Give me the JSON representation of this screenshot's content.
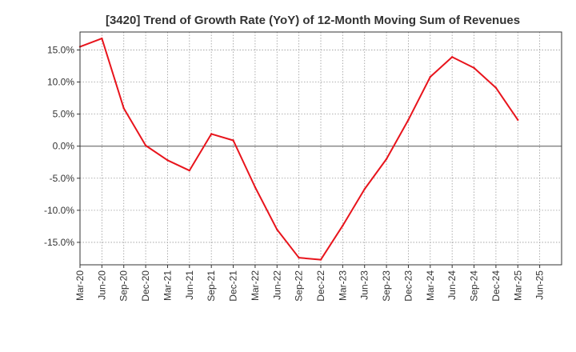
{
  "chart_data": {
    "type": "line",
    "title": "[3420]  Trend of Growth Rate (YoY) of 12-Month Moving Sum of Revenues",
    "xlabel": "",
    "ylabel": "",
    "x": [
      "Mar-20",
      "Jun-20",
      "Sep-20",
      "Dec-20",
      "Mar-21",
      "Jun-21",
      "Sep-21",
      "Dec-21",
      "Mar-22",
      "Jun-22",
      "Sep-22",
      "Dec-22",
      "Mar-23",
      "Jun-23",
      "Sep-23",
      "Dec-23",
      "Mar-24",
      "Jun-24",
      "Sep-24",
      "Dec-24",
      "Mar-25",
      "Jun-25"
    ],
    "x_tick_labels": [
      "Mar-20",
      "Jun-20",
      "Sep-20",
      "Dec-20",
      "Mar-21",
      "Jun-21",
      "Sep-21",
      "Dec-21",
      "Mar-22",
      "Jun-22",
      "Sep-22",
      "Dec-22",
      "Mar-23",
      "Jun-23",
      "Sep-23",
      "Dec-23",
      "Mar-24",
      "Jun-24",
      "Sep-24",
      "Dec-24",
      "Mar-25",
      "Jun-25"
    ],
    "y_ticks": [
      15,
      10,
      5,
      0,
      -5,
      -10,
      -15
    ],
    "y_tick_labels": [
      "15.0%",
      "10.0%",
      "5.0%",
      "0.0%",
      "-5.0%",
      "-10.0%",
      "-15.0%"
    ],
    "ylim": [
      -18.5,
      17.8
    ],
    "grid": true,
    "zero_line": true,
    "series": [
      {
        "color": "#e8141c",
        "values": [
          15.5,
          16.8,
          5.9,
          0.1,
          -2.2,
          -3.8,
          1.9,
          0.9,
          -6.4,
          -13.0,
          -17.4,
          -17.7,
          -12.4,
          -6.7,
          -2.0,
          4.1,
          10.8,
          13.9,
          12.2,
          9.1,
          4.1,
          null
        ]
      }
    ]
  }
}
